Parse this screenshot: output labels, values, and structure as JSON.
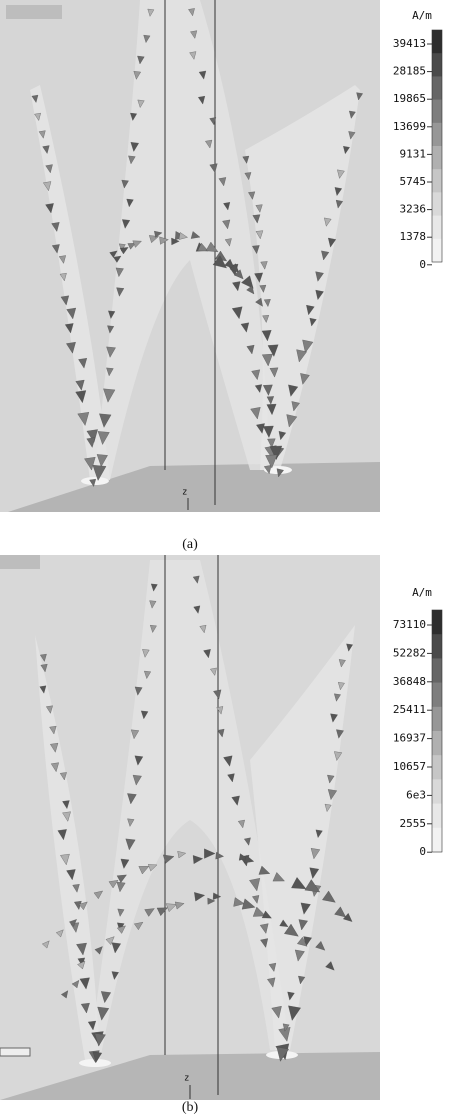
{
  "panels": [
    {
      "unit": "A/m",
      "legend": [
        "39413",
        "28185",
        "19865",
        "13699",
        "9131",
        "5745",
        "3236",
        "1378",
        "0"
      ],
      "axis_label": "z",
      "caption": "(a)"
    },
    {
      "unit": "A/m",
      "legend": [
        "73110",
        "52282",
        "36848",
        "25411",
        "16937",
        "10657",
        "6e3",
        "2555",
        "0"
      ],
      "axis_label": "z",
      "caption": "(b)"
    }
  ]
}
